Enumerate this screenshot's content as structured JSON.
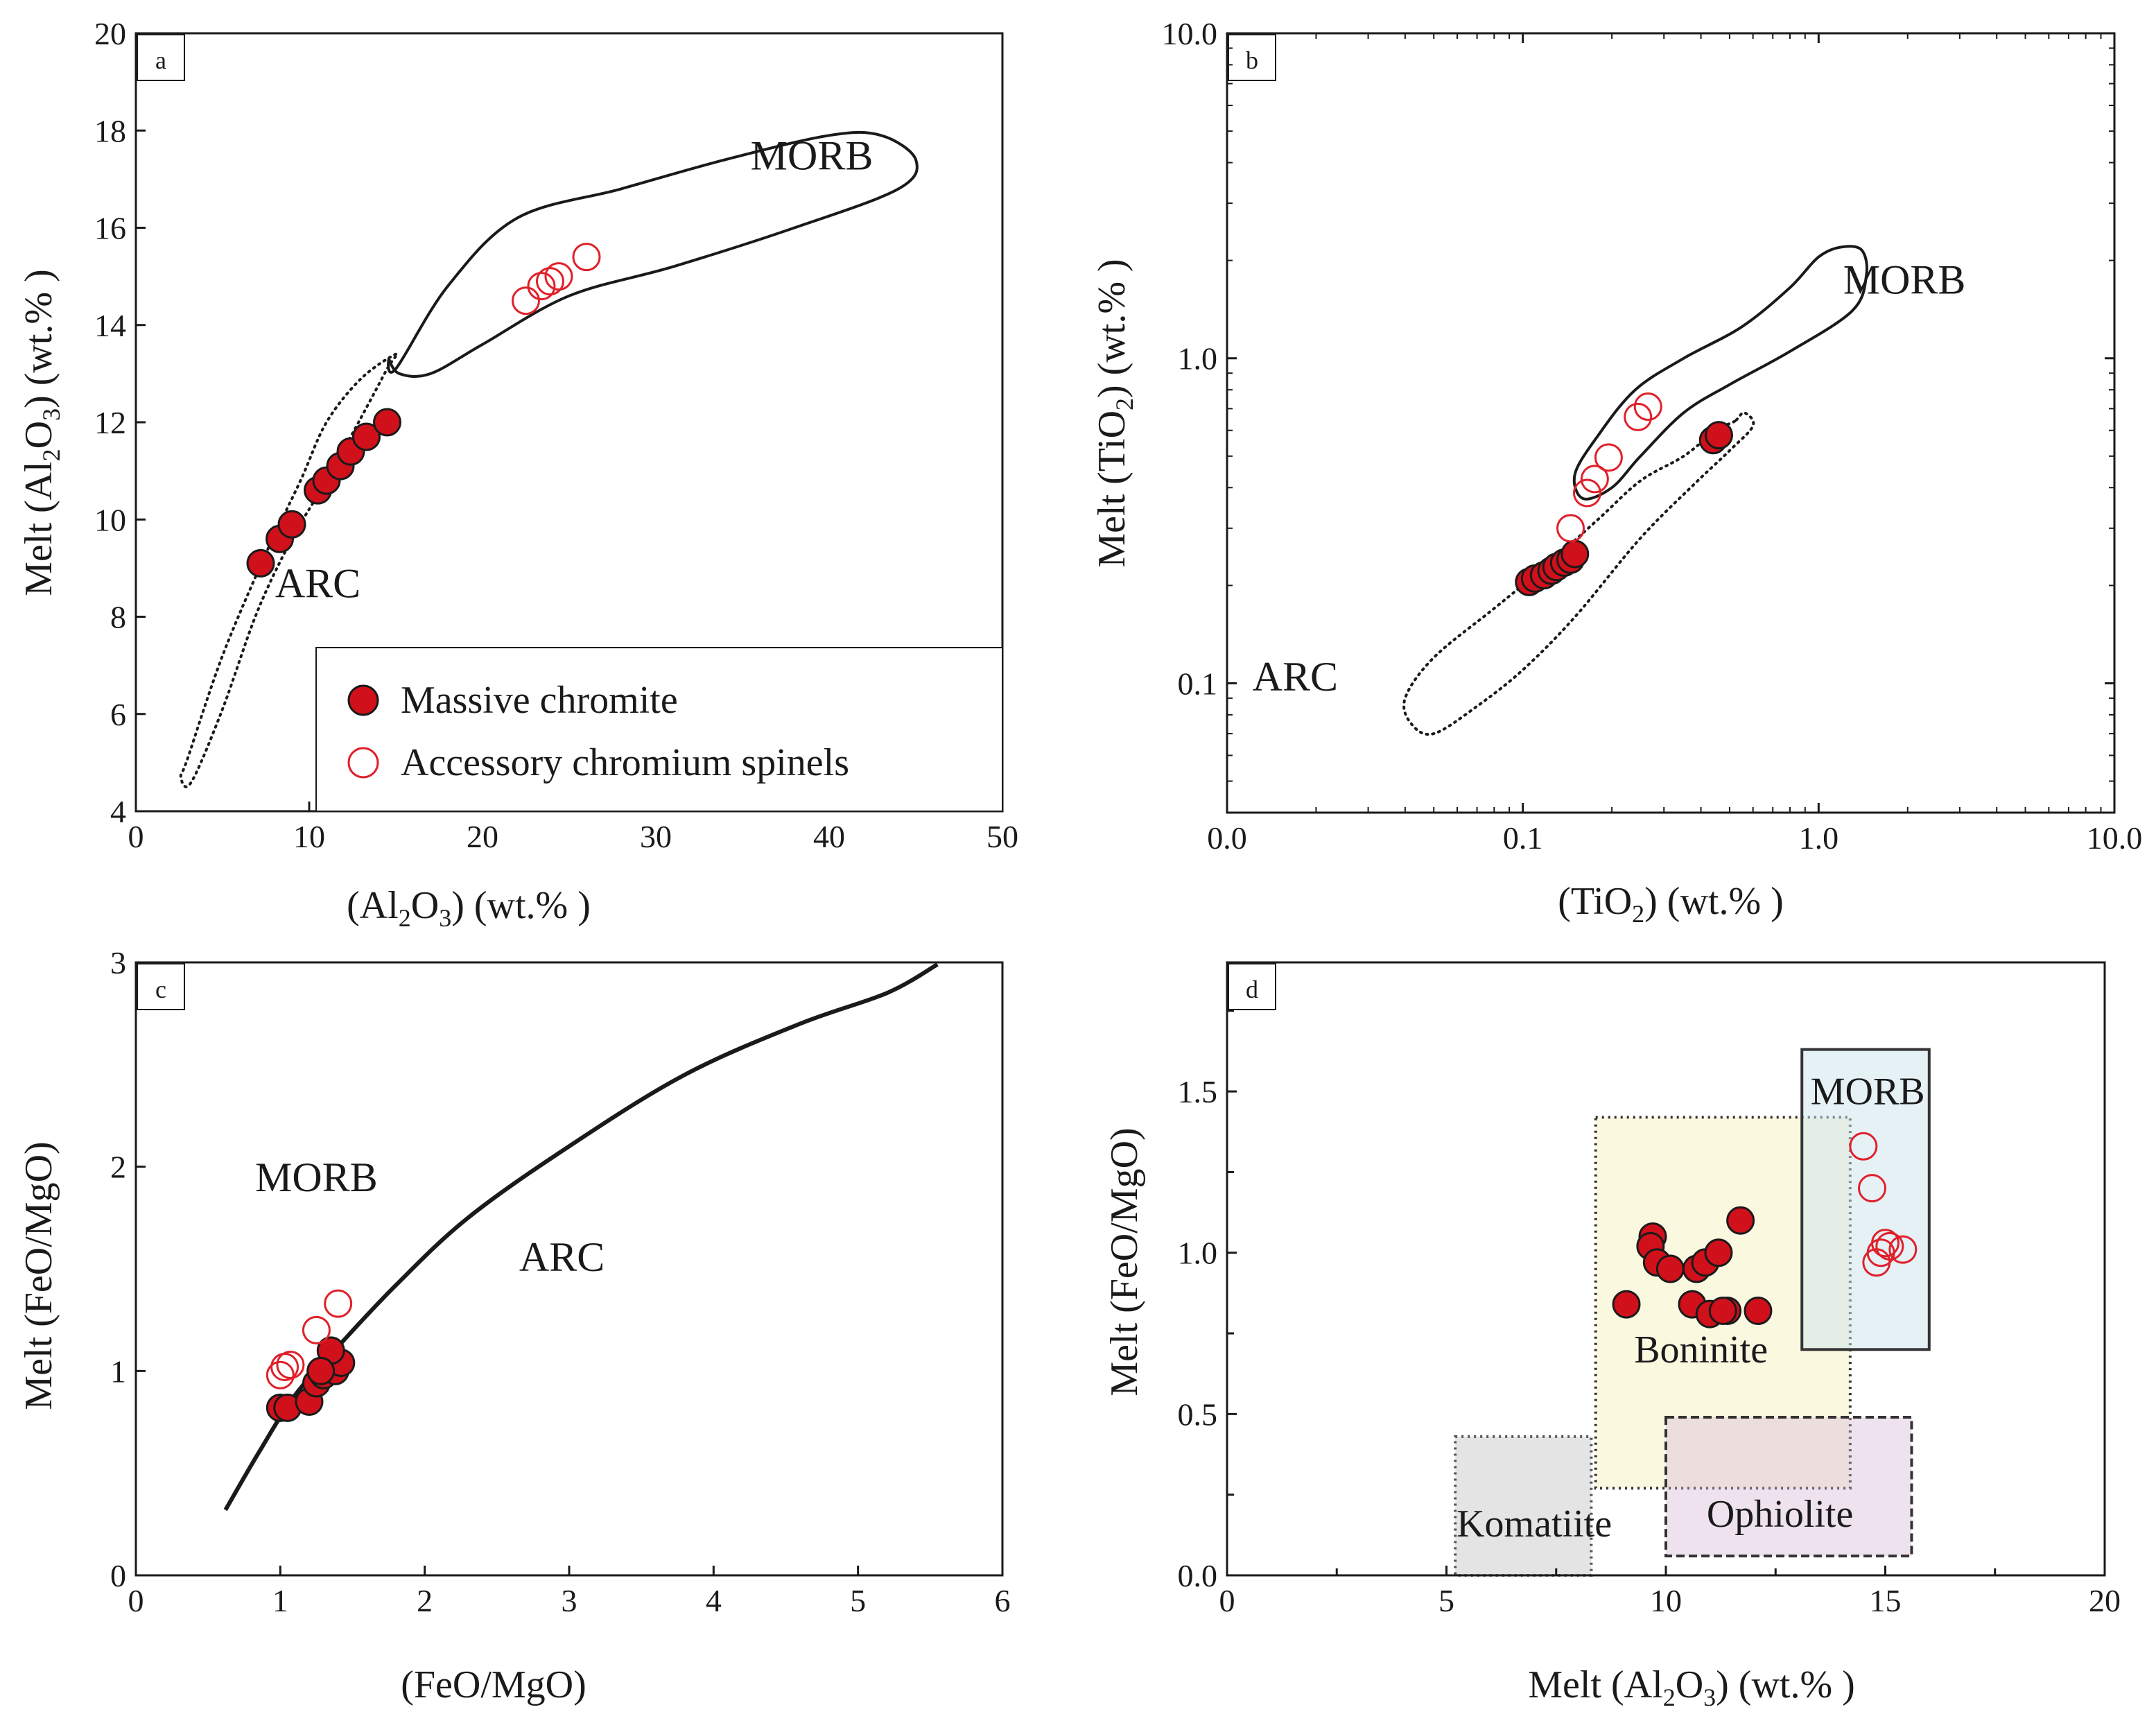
{
  "colors": {
    "solid": "#d0101a",
    "open": "#e0202a",
    "ink": "#1a1a1a"
  },
  "legend": {
    "solid_label": "Massive chromite",
    "open_label": "Accessory chromium spinels"
  },
  "chart_data": [
    {
      "id": "a",
      "panel_label": "a",
      "type": "scatter",
      "scale": "linear",
      "xlim": [
        0,
        50
      ],
      "ylim": [
        4,
        20
      ],
      "xticks": [
        0,
        10,
        20,
        30,
        40,
        50
      ],
      "xtick_labels": [
        "0",
        "10",
        "20",
        "30",
        "40",
        "50"
      ],
      "yticks": [
        4,
        6,
        8,
        10,
        12,
        14,
        16,
        18,
        20
      ],
      "ytick_labels": [
        "4",
        "6",
        "8",
        "10",
        "12",
        "14",
        "16",
        "18",
        "20"
      ],
      "xlabel": {
        "pre": "(A",
        "mid": "l",
        "s1": "2",
        "o": "O",
        "s2": "3",
        "post": ") (wt.% )"
      },
      "ylabel": {
        "pre": "Melt (A",
        "mid": "l",
        "s1": "2",
        "o": "O",
        "s2": "3",
        "post": ") (wt.% )"
      },
      "field_labels": [
        {
          "text": "MORB",
          "x": 39,
          "y": 17.2
        },
        {
          "text": "ARC",
          "x": 10.5,
          "y": 8.4
        }
      ],
      "regions": [
        {
          "name": "MORB",
          "style": "solid",
          "points": [
            [
              15,
              13.1
            ],
            [
              18,
              14.8
            ],
            [
              22,
              16.2
            ],
            [
              28,
              16.8
            ],
            [
              34,
              17.4
            ],
            [
              40,
              17.9
            ],
            [
              43,
              17.9
            ],
            [
              45,
              17.4
            ],
            [
              44,
              16.8
            ],
            [
              38,
              16.0
            ],
            [
              31,
              15.2
            ],
            [
              25,
              14.6
            ],
            [
              20,
              13.6
            ],
            [
              17,
              13.0
            ],
            [
              15.2,
              13.0
            ],
            [
              14.6,
              13.3
            ]
          ]
        },
        {
          "name": "ARC",
          "style": "dotted",
          "points": [
            [
              15,
              13.4
            ],
            [
              13,
              12.9
            ],
            [
              11,
              12.0
            ],
            [
              9.5,
              10.8
            ],
            [
              7.5,
              9.3
            ],
            [
              5,
              7.2
            ],
            [
              3,
              5.1
            ],
            [
              2.6,
              4.7
            ],
            [
              3.2,
              4.6
            ],
            [
              5,
              6.1
            ],
            [
              7,
              8.1
            ],
            [
              9,
              9.6
            ],
            [
              11,
              10.8
            ],
            [
              13,
              12.1
            ],
            [
              14.5,
              13.1
            ]
          ]
        }
      ],
      "series": [
        {
          "name": "Massive chromite",
          "marker": "filled",
          "x": [
            7.2,
            8.3,
            9.0,
            10.5,
            11.0,
            11.8,
            12.4,
            13.3,
            14.5
          ],
          "y": [
            9.1,
            9.6,
            9.9,
            10.6,
            10.8,
            11.1,
            11.4,
            11.7,
            12.0
          ]
        },
        {
          "name": "Accessory chromium spinels",
          "marker": "open",
          "x": [
            22.5,
            23.4,
            23.9,
            24.4,
            26.0
          ],
          "y": [
            14.5,
            14.8,
            14.9,
            15.0,
            15.4
          ]
        }
      ]
    },
    {
      "id": "b",
      "panel_label": "b",
      "type": "scatter",
      "scale": "log",
      "xlim": [
        0.01,
        10
      ],
      "ylim": [
        0.04,
        10
      ],
      "xticks": [
        0.01,
        0.1,
        1,
        10
      ],
      "xtick_labels": [
        "0.0",
        "0.1",
        "1.0",
        "10.0"
      ],
      "yticks": [
        0.1,
        1,
        10
      ],
      "ytick_labels": [
        "0.1",
        "1.0",
        "10.0"
      ],
      "xlabel": {
        "pre": "(TiO",
        "sub": "2",
        "post": ") (wt.% )"
      },
      "ylabel": {
        "pre": "Melt (TiO",
        "sub": "2",
        "post": ") (wt.% )"
      },
      "field_labels": [
        {
          "text": "MORB",
          "x": 1.95,
          "y": 1.58
        },
        {
          "text": "ARC",
          "x": 0.017,
          "y": 0.095
        }
      ],
      "regions": [
        {
          "name": "MORB",
          "style": "solid",
          "points": [
            [
              0.16,
              0.37
            ],
            [
              0.15,
              0.44
            ],
            [
              0.18,
              0.58
            ],
            [
              0.24,
              0.8
            ],
            [
              0.35,
              1.0
            ],
            [
              0.55,
              1.25
            ],
            [
              0.8,
              1.65
            ],
            [
              1.0,
              2.05
            ],
            [
              1.2,
              2.2
            ],
            [
              1.4,
              2.15
            ],
            [
              1.45,
              1.8
            ],
            [
              1.3,
              1.4
            ],
            [
              0.8,
              1.05
            ],
            [
              0.5,
              0.83
            ],
            [
              0.35,
              0.68
            ],
            [
              0.25,
              0.5
            ],
            [
              0.2,
              0.4
            ]
          ]
        },
        {
          "name": "ARC",
          "style": "dotted",
          "points": [
            [
              0.52,
              0.64
            ],
            [
              0.45,
              0.6
            ],
            [
              0.35,
              0.5
            ],
            [
              0.25,
              0.42
            ],
            [
              0.18,
              0.32
            ],
            [
              0.12,
              0.23
            ],
            [
              0.08,
              0.17
            ],
            [
              0.05,
              0.12
            ],
            [
              0.04,
              0.09
            ],
            [
              0.042,
              0.075
            ],
            [
              0.05,
              0.07
            ],
            [
              0.07,
              0.085
            ],
            [
              0.1,
              0.11
            ],
            [
              0.15,
              0.16
            ],
            [
              0.25,
              0.28
            ],
            [
              0.38,
              0.41
            ],
            [
              0.5,
              0.52
            ],
            [
              0.6,
              0.62
            ],
            [
              0.56,
              0.68
            ]
          ]
        }
      ],
      "series": [
        {
          "name": "Massive chromite",
          "marker": "filled",
          "x": [
            0.105,
            0.11,
            0.118,
            0.125,
            0.13,
            0.138,
            0.145,
            0.15,
            0.44,
            0.46
          ],
          "y": [
            0.205,
            0.21,
            0.215,
            0.222,
            0.228,
            0.235,
            0.24,
            0.25,
            0.56,
            0.58
          ]
        },
        {
          "name": "Accessory chromium spinels",
          "marker": "open",
          "x": [
            0.145,
            0.165,
            0.175,
            0.195,
            0.245,
            0.265
          ],
          "y": [
            0.3,
            0.385,
            0.425,
            0.495,
            0.66,
            0.71
          ]
        }
      ]
    },
    {
      "id": "c",
      "panel_label": "c",
      "type": "scatter",
      "scale": "linear",
      "xlim": [
        0,
        6
      ],
      "ylim": [
        0,
        3
      ],
      "xticks": [
        0,
        1,
        2,
        3,
        4,
        5,
        6
      ],
      "xtick_labels": [
        "0",
        "1",
        "2",
        "3",
        "4",
        "5",
        "6"
      ],
      "yticks": [
        0,
        1,
        2,
        3
      ],
      "ytick_labels": [
        "0",
        "1",
        "2",
        "3"
      ],
      "xlabel": {
        "text": "(FeO/MgO)"
      },
      "ylabel": {
        "text": "Melt (FeO/MgO)"
      },
      "field_labels": [
        {
          "text": "MORB",
          "x": 1.25,
          "y": 1.88
        },
        {
          "text": "ARC",
          "x": 2.95,
          "y": 1.49
        }
      ],
      "curves": [
        {
          "name": "MORB-ARC boundary",
          "points": [
            [
              0.62,
              0.32
            ],
            [
              0.85,
              0.6
            ],
            [
              1.1,
              0.88
            ],
            [
              1.4,
              1.12
            ],
            [
              1.8,
              1.42
            ],
            [
              2.3,
              1.75
            ],
            [
              3.0,
              2.1
            ],
            [
              3.8,
              2.45
            ],
            [
              4.6,
              2.7
            ],
            [
              5.2,
              2.85
            ],
            [
              5.55,
              2.99
            ]
          ]
        }
      ],
      "series": [
        {
          "name": "Massive chromite",
          "marker": "filled",
          "x": [
            1.0,
            1.05,
            1.2,
            1.25,
            1.3,
            1.38,
            1.42,
            1.35,
            1.28
          ],
          "y": [
            0.82,
            0.82,
            0.85,
            0.94,
            0.98,
            1.0,
            1.04,
            1.1,
            1.0
          ]
        },
        {
          "name": "Accessory chromium spinels",
          "marker": "open",
          "x": [
            1.0,
            1.03,
            1.07,
            1.25,
            1.4
          ],
          "y": [
            0.98,
            1.02,
            1.03,
            1.2,
            1.33
          ]
        }
      ]
    },
    {
      "id": "d",
      "panel_label": "d",
      "type": "scatter",
      "scale": "linear",
      "xlim": [
        0,
        20
      ],
      "ylim": [
        0,
        1.9
      ],
      "xticks": [
        0,
        5,
        10,
        15,
        20
      ],
      "xtick_labels": [
        "0",
        "5",
        "10",
        "15",
        "20"
      ],
      "yticks": [
        0,
        0.5,
        1.0,
        1.5
      ],
      "ytick_labels": [
        "0.0",
        "0.5",
        "1.0",
        "1.5"
      ],
      "minor_xticks": [
        2.5,
        7.5,
        12.5,
        17.5
      ],
      "minor_yticks": [
        0.25,
        0.75,
        1.25,
        1.75
      ],
      "xlabel": {
        "pre": "Melt (A",
        "mid": "l",
        "s1": "2",
        "o": "O",
        "s2": "3",
        "post": ") (wt.% )"
      },
      "ylabel": {
        "text": "Melt (FeO/MgO)"
      },
      "boxes": [
        {
          "name": "Komatiite",
          "x0": 5.2,
          "x1": 8.3,
          "y0": 0.0,
          "y1": 0.43,
          "fill": "#e4e4e4",
          "stroke": "#555555",
          "dash": "3,6",
          "label": "Komatiite",
          "lx": 7.0,
          "ly": 0.12
        },
        {
          "name": "Boninite",
          "x0": 8.4,
          "x1": 14.2,
          "y0": 0.27,
          "y1": 1.42,
          "fill": "#fbf8e0",
          "stroke": "#333333",
          "dash": "3,6",
          "label": "Boninite",
          "lx": 10.8,
          "ly": 0.66
        },
        {
          "name": "Ophiolite",
          "x0": 10.0,
          "x1": 15.6,
          "y0": 0.06,
          "y1": 0.49,
          "fill": "rgba(214,180,214,0.38)",
          "stroke": "#333333",
          "dash": "12,6",
          "label": "Ophiolite",
          "lx": 12.6,
          "ly": 0.15
        },
        {
          "name": "MORB",
          "x0": 13.1,
          "x1": 16.0,
          "y0": 0.7,
          "y1": 1.63,
          "fill": "rgba(205,228,238,0.5)",
          "stroke": "#333333",
          "dash": "",
          "label": "MORB",
          "lx": 14.6,
          "ly": 1.46
        }
      ],
      "series": [
        {
          "name": "Massive chromite",
          "marker": "filled",
          "x": [
            9.1,
            9.7,
            9.65,
            9.8,
            10.1,
            10.6,
            10.7,
            10.9,
            11.2,
            11.0,
            11.4,
            11.3,
            11.7,
            12.1
          ],
          "y": [
            0.84,
            1.05,
            1.02,
            0.97,
            0.95,
            0.84,
            0.95,
            0.97,
            1.0,
            0.81,
            0.82,
            0.82,
            1.1,
            0.82
          ]
        },
        {
          "name": "Accessory chromium spinels",
          "marker": "open",
          "x": [
            14.5,
            14.7,
            14.8,
            14.9,
            15.0,
            15.1,
            15.4
          ],
          "y": [
            1.33,
            1.2,
            0.97,
            1.0,
            1.03,
            1.02,
            1.01
          ]
        }
      ]
    }
  ]
}
